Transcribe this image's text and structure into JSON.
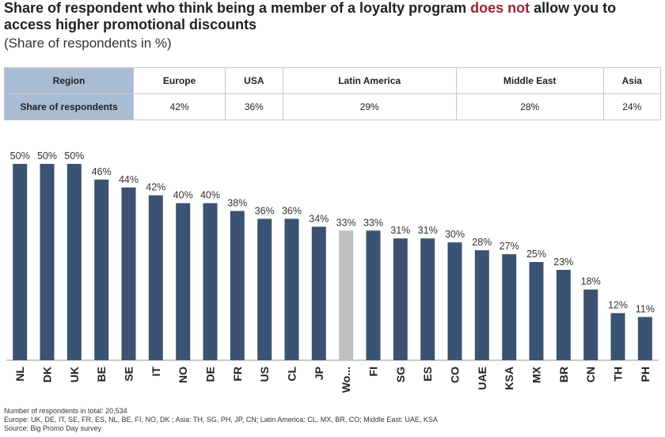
{
  "title": {
    "part1": "Share of respondent who think being a member of a loyalty program ",
    "highlight": "does not",
    "part2": " allow you to access higher promotional discounts"
  },
  "subtitle": "(Share of respondents in %)",
  "colors": {
    "bar": "#3a5373",
    "highlight_bar": "#c0c0c0",
    "header_cell": "#a8bcd4",
    "title_highlight": "#9b2335"
  },
  "summary_table": {
    "header_label": "Region",
    "row_label": "Share of respondents",
    "columns": [
      "Europe",
      "USA",
      "Latin America",
      "Middle East",
      "Asia"
    ],
    "values": [
      "42%",
      "36%",
      "29%",
      "28%",
      "24%"
    ]
  },
  "chart_data": {
    "type": "bar",
    "categories": [
      "NL",
      "DK",
      "UK",
      "BE",
      "SE",
      "IT",
      "NO",
      "DE",
      "FR",
      "US",
      "CL",
      "JP",
      "Wo...",
      "FI",
      "SG",
      "ES",
      "CO",
      "UAE",
      "KSA",
      "MX",
      "BR",
      "CN",
      "TH",
      "PH"
    ],
    "values": [
      50,
      50,
      50,
      46,
      44,
      42,
      40,
      40,
      38,
      36,
      36,
      34,
      33,
      33,
      31,
      31,
      30,
      28,
      27,
      25,
      23,
      18,
      12,
      11
    ],
    "labels": [
      "50%",
      "50%",
      "50%",
      "46%",
      "44%",
      "42%",
      "40%",
      "40%",
      "38%",
      "36%",
      "36%",
      "34%",
      "33%",
      "33%",
      "31%",
      "31%",
      "30%",
      "28%",
      "27%",
      "25%",
      "23%",
      "18%",
      "12%",
      "11%"
    ],
    "highlight_category": "Wo...",
    "ylim": [
      0,
      50
    ],
    "grid": false
  },
  "footnotes": [
    "Number of respondents in total: 20,534",
    "Europe: UK, DE, IT, SE, FR, ES, NL, BE, FI, NO, DK ; Asia: TH, SG, PH, JP, CN; Latin America: CL, MX, BR, CO; Middle East: UAE, KSA",
    "Source: Big Promo Day survey"
  ]
}
